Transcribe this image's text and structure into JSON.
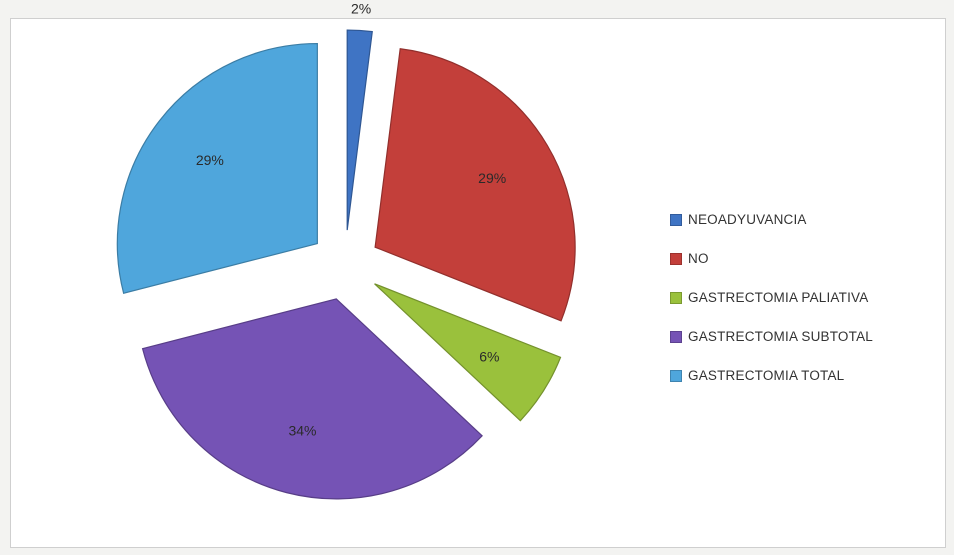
{
  "chart_data": {
    "type": "pie",
    "title": "",
    "legend_position": "right",
    "slices": [
      {
        "label": "NEOADYUVANCIA",
        "value": 2,
        "display": "2%",
        "color": "#3f74c4"
      },
      {
        "label": "NO",
        "value": 29,
        "display": "29%",
        "color": "#c33f3a"
      },
      {
        "label": "GASTRECTOMIA PALIATIVA",
        "value": 6,
        "display": "6%",
        "color": "#9ac13c"
      },
      {
        "label": "GASTRECTOMIA SUBTOTAL",
        "value": 34,
        "display": "34%",
        "color": "#7553b5"
      },
      {
        "label": "GASTRECTOMIA TOTAL",
        "value": 29,
        "display": "29%",
        "color": "#4fa6dc"
      }
    ]
  }
}
